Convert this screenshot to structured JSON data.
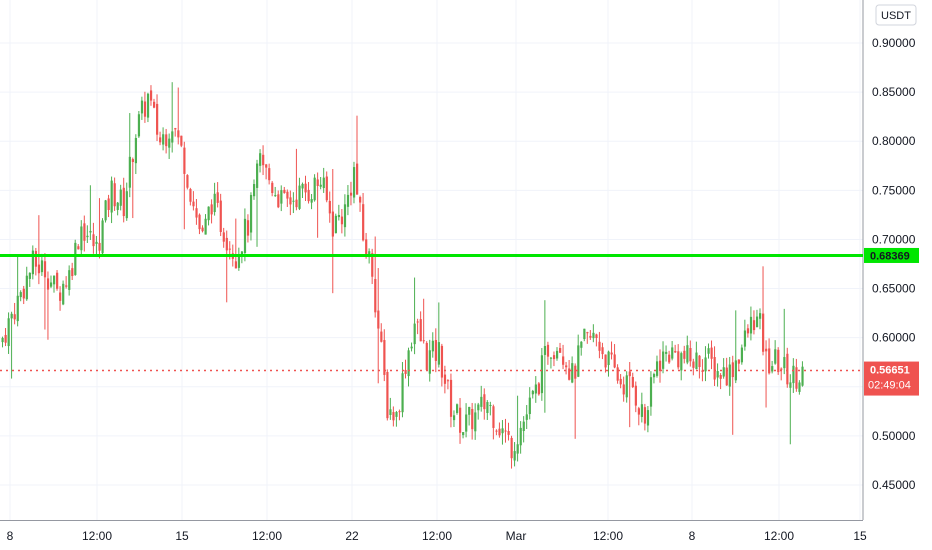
{
  "currency": "USDT",
  "colors": {
    "up": "#26a69a",
    "up_candle": "#4caf50",
    "down": "#ef5350",
    "support_line": "#00e600",
    "grid": "#f0f3fa",
    "axis_text": "#131722"
  },
  "chart_data": {
    "type": "candlestick",
    "title": "",
    "xlabel": "",
    "ylabel": "",
    "ylim": [
      0.425,
      0.925
    ],
    "y_ticks": [
      "0.90000",
      "0.85000",
      "0.80000",
      "0.75000",
      "0.70000",
      "0.65000",
      "0.60000",
      "0.55000",
      "0.50000",
      "0.45000"
    ],
    "y_tick_values": [
      0.9,
      0.85,
      0.8,
      0.75,
      0.7,
      0.65,
      0.6,
      0.55,
      0.5,
      0.45
    ],
    "x_ticks": [
      "8",
      "12:00",
      "15",
      "12:00",
      "22",
      "12:00",
      "Mar",
      "12:00",
      "8",
      "12:00",
      "15"
    ],
    "horizontal_line": {
      "value": 0.68369,
      "label": "0.68369"
    },
    "last_price": {
      "value": 0.56651,
      "label": "0.56651",
      "countdown": "02:49:04"
    },
    "anchors": [
      [
        0,
        0.6
      ],
      [
        6,
        0.645
      ],
      [
        10,
        0.675
      ],
      [
        14,
        0.67
      ],
      [
        18,
        0.645
      ],
      [
        22,
        0.665
      ],
      [
        26,
        0.715
      ],
      [
        31,
        0.69
      ],
      [
        36,
        0.75
      ],
      [
        40,
        0.735
      ],
      [
        44,
        0.81
      ],
      [
        48,
        0.845
      ],
      [
        52,
        0.8
      ],
      [
        56,
        0.82
      ],
      [
        60,
        0.78
      ],
      [
        63,
        0.735
      ],
      [
        66,
        0.7
      ],
      [
        69,
        0.74
      ],
      [
        73,
        0.71
      ],
      [
        77,
        0.685
      ],
      [
        81,
        0.715
      ],
      [
        85,
        0.78
      ],
      [
        89,
        0.755
      ],
      [
        93,
        0.735
      ],
      [
        97,
        0.745
      ],
      [
        101,
        0.75
      ],
      [
        105,
        0.76
      ],
      [
        109,
        0.715
      ],
      [
        113,
        0.73
      ],
      [
        116,
        0.77
      ],
      [
        119,
        0.7
      ],
      [
        122,
        0.67
      ],
      [
        124,
        0.61
      ],
      [
        127,
        0.53
      ],
      [
        130,
        0.52
      ],
      [
        133,
        0.575
      ],
      [
        136,
        0.615
      ],
      [
        140,
        0.58
      ],
      [
        144,
        0.585
      ],
      [
        148,
        0.53
      ],
      [
        152,
        0.51
      ],
      [
        156,
        0.52
      ],
      [
        160,
        0.535
      ],
      [
        164,
        0.51
      ],
      [
        168,
        0.49
      ],
      [
        172,
        0.515
      ],
      [
        176,
        0.545
      ],
      [
        180,
        0.59
      ],
      [
        184,
        0.595
      ],
      [
        188,
        0.56
      ],
      [
        192,
        0.595
      ],
      [
        196,
        0.6
      ],
      [
        200,
        0.575
      ],
      [
        204,
        0.555
      ],
      [
        208,
        0.55
      ],
      [
        212,
        0.515
      ],
      [
        216,
        0.575
      ],
      [
        220,
        0.585
      ],
      [
        224,
        0.58
      ],
      [
        228,
        0.575
      ],
      [
        232,
        0.58
      ],
      [
        236,
        0.565
      ],
      [
        240,
        0.565
      ],
      [
        244,
        0.59
      ],
      [
        248,
        0.62
      ],
      [
        250,
        0.61
      ],
      [
        252,
        0.575
      ],
      [
        256,
        0.575
      ],
      [
        260,
        0.56
      ],
      [
        264,
        0.566
      ]
    ]
  }
}
